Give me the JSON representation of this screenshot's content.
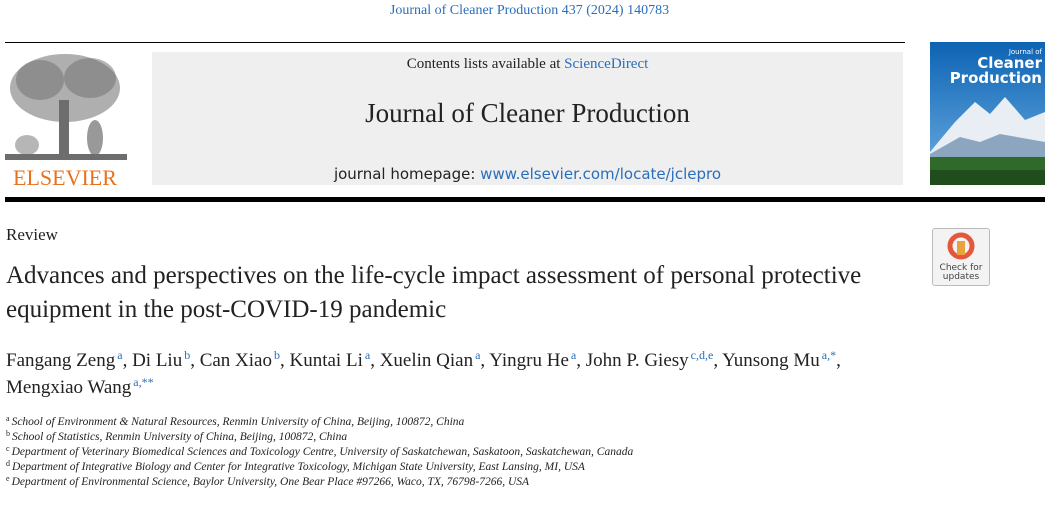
{
  "citation": "Journal of Cleaner Production 437 (2024) 140783",
  "header": {
    "contents_prefix": "Contents lists available at",
    "contents_link": "ScienceDirect",
    "journal_title": "Journal of Cleaner Production",
    "homepage_prefix": "journal homepage:",
    "homepage_link": "www.elsevier.com/locate/jclepro"
  },
  "publisher": "ELSEVIER",
  "cover": {
    "small": "Journal of",
    "lines": [
      "Cleaner",
      "Production"
    ]
  },
  "check_updates": [
    "Check for",
    "updates"
  ],
  "article_type": "Review",
  "title": "Advances and perspectives on the life-cycle impact assessment of personal protective equipment in the post-COVID-19 pandemic",
  "authors": [
    {
      "name": "Fangang Zeng",
      "sup": "a",
      "sep": ","
    },
    {
      "name": "Di Liu",
      "sup": "b",
      "sep": ","
    },
    {
      "name": "Can Xiao",
      "sup": "b",
      "sep": ","
    },
    {
      "name": "Kuntai Li",
      "sup": "a",
      "sep": ","
    },
    {
      "name": "Xuelin Qian",
      "sup": "a",
      "sep": ","
    },
    {
      "name": "Yingru He",
      "sup": "a",
      "sep": ","
    },
    {
      "name": "John P. Giesy",
      "sup": "c,d,e",
      "sep": ","
    },
    {
      "name": "Yunsong Mu",
      "sup": "a,*",
      "sep": ","
    },
    {
      "name": "Mengxiao Wang",
      "sup": "a,**"
    }
  ],
  "affiliations": [
    {
      "label": "a",
      "text": "School of Environment & Natural Resources, Renmin University of China, Beijing, 100872, China"
    },
    {
      "label": "b",
      "text": "School of Statistics, Renmin University of China, Beijing, 100872, China"
    },
    {
      "label": "c",
      "text": "Department of Veterinary Biomedical Sciences and Toxicology Centre, University of Saskatchewan, Saskatoon, Saskatchewan, Canada"
    },
    {
      "label": "d",
      "text": "Department of Integrative Biology and Center for Integrative Toxicology, Michigan State University, East Lansing, MI, USA"
    },
    {
      "label": "e",
      "text": "Department of Environmental Science, Baylor University, One Bear Place #97266, Waco, TX, 76798-7266, USA"
    }
  ]
}
